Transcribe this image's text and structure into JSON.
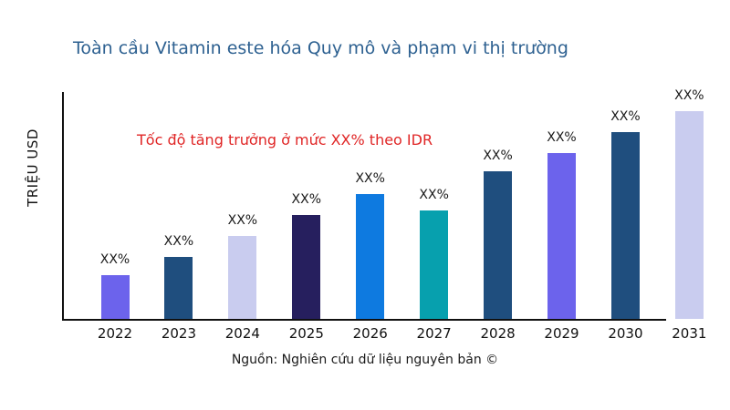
{
  "title": {
    "text": "Toàn cầu Vitamin este hóa Quy mô và phạm vi thị trường",
    "color": "#2E6191"
  },
  "annotation": {
    "text": "Tốc độ tăng trưởng ở mức XX% theo IDR",
    "color": "#E02626"
  },
  "footer": {
    "text": "Nguồn: Nghiên cứu dữ liệu nguyên bản ©"
  },
  "chart_data": {
    "type": "bar",
    "title": "Toàn cầu Vitamin este hóa Quy mô và phạm vi thị trường",
    "xlabel": "",
    "ylabel": "TRIỆU USD",
    "y_axis_numeric": false,
    "grid": false,
    "legend": false,
    "categories": [
      "2022",
      "2023",
      "2024",
      "2025",
      "2026",
      "2027",
      "2028",
      "2029",
      "2030",
      "2031"
    ],
    "value_labels": [
      "XX%",
      "XX%",
      "XX%",
      "XX%",
      "XX%",
      "XX%",
      "XX%",
      "XX%",
      "XX%",
      "XX%"
    ],
    "relative_heights_pct_of_max": [
      21,
      30,
      40,
      50,
      60,
      52,
      71,
      80,
      90,
      100
    ],
    "bar_colors": [
      "#6C63EC",
      "#1F4E7E",
      "#C9CCEF",
      "#261F5E",
      "#0E7AE0",
      "#07A0AE",
      "#1F4E7E",
      "#6C63EC",
      "#1F4E7E",
      "#C9CCEF"
    ],
    "axis_color": "#111111",
    "label_color": "#1a1a1a",
    "annotation_text": "Tốc độ tăng trưởng ở mức XX% theo IDR",
    "source_note": "Nguồn: Nghiên cứu dữ liệu nguyên bản ©"
  }
}
